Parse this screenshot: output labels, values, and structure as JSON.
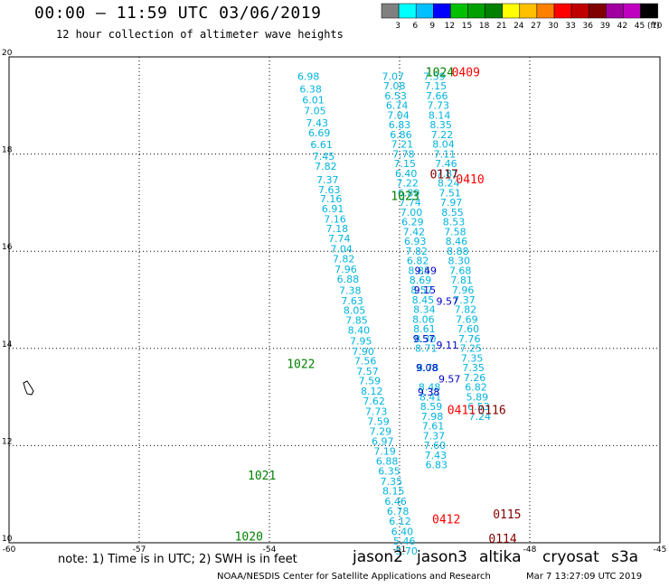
{
  "header": {
    "title": "00:00 – 11:59 UTC 03/06/2019",
    "subtitle": "12 hour collection of altimeter wave heights"
  },
  "colorbar": {
    "ticks": [
      "3",
      "6",
      "9",
      "12",
      "15",
      "18",
      "21",
      "24",
      "27",
      "30",
      "33",
      "36",
      "39",
      "42",
      "45",
      "70"
    ],
    "unit": "(ft)",
    "colors": [
      "#808080",
      "#00ffff",
      "#00c0ff",
      "#0000ff",
      "#00c000",
      "#00a000",
      "#008000",
      "#ffff00",
      "#ffc000",
      "#ff8000",
      "#ff0000",
      "#c00000",
      "#800000",
      "#a000a0",
      "#c000c0",
      "#000000"
    ]
  },
  "chart_data": {
    "type": "scatter",
    "xlim": [
      -60,
      -45
    ],
    "ylim": [
      10,
      20
    ],
    "x_ticks": [
      "-60",
      "-57",
      "-54",
      "-51",
      "-48",
      "-45"
    ],
    "y_ticks": [
      "10",
      "12",
      "14",
      "16",
      "18",
      "20"
    ],
    "tracks": [
      {
        "color": "#00b4dc",
        "points": [
          [
            -53.1,
            19.53,
            "6.98"
          ],
          [
            -53.05,
            19.27,
            "6.38"
          ],
          [
            -52.99,
            19.04,
            "6.01"
          ],
          [
            -52.95,
            18.82,
            "7.05"
          ],
          [
            -52.9,
            18.57,
            "7.43"
          ],
          [
            -52.85,
            18.36,
            "6.69"
          ],
          [
            -52.8,
            18.12,
            "6.61"
          ],
          [
            -52.75,
            17.88,
            "7.45"
          ],
          [
            -52.7,
            17.68,
            "7.82"
          ],
          [
            -52.66,
            17.4,
            "7.37"
          ],
          [
            -52.62,
            17.19,
            "7.63"
          ],
          [
            -52.58,
            17.01,
            "7.16"
          ],
          [
            -52.54,
            16.8,
            "6.91"
          ],
          [
            -52.49,
            16.59,
            "7.16"
          ],
          [
            -52.44,
            16.39,
            "7.18"
          ],
          [
            -52.39,
            16.19,
            "7.74"
          ],
          [
            -52.34,
            15.98,
            "7.04"
          ],
          [
            -52.29,
            15.77,
            "7.82"
          ],
          [
            -52.24,
            15.56,
            "7.96"
          ],
          [
            -52.19,
            15.35,
            "6.88"
          ],
          [
            -52.14,
            15.12,
            "7.38"
          ],
          [
            -52.09,
            14.91,
            "7.63"
          ],
          [
            -52.04,
            14.71,
            "8.05"
          ],
          [
            -51.99,
            14.51,
            "7.85"
          ],
          [
            -51.94,
            14.3,
            "8.40"
          ],
          [
            -51.89,
            14.08,
            "7.95"
          ],
          [
            -51.84,
            13.87,
            "7.90"
          ],
          [
            -51.79,
            13.67,
            "7.56"
          ],
          [
            -51.74,
            13.46,
            "7.57"
          ],
          [
            -51.69,
            13.26,
            "7.59"
          ],
          [
            -51.64,
            13.05,
            "8.12"
          ],
          [
            -51.59,
            12.84,
            "7.62"
          ],
          [
            -51.54,
            12.63,
            "7.73"
          ],
          [
            -51.49,
            12.43,
            "7.59"
          ],
          [
            -51.44,
            12.22,
            "7.29"
          ],
          [
            -51.39,
            12.02,
            "6.97"
          ],
          [
            -51.34,
            11.81,
            "7.19"
          ],
          [
            -51.29,
            11.61,
            "6.88"
          ],
          [
            -51.24,
            11.4,
            "6.35"
          ],
          [
            -51.19,
            11.19,
            "7.35"
          ],
          [
            -51.14,
            10.99,
            "8.15"
          ],
          [
            -51.09,
            10.78,
            "6.46"
          ],
          [
            -51.04,
            10.58,
            "6.78"
          ],
          [
            -50.99,
            10.37,
            "6.12"
          ],
          [
            -50.94,
            10.16,
            "6.40"
          ],
          [
            -50.89,
            9.96,
            "5.46"
          ],
          [
            -50.84,
            9.76,
            "5.70"
          ]
        ]
      },
      {
        "color": "#00b4dc",
        "points": [
          [
            -51.15,
            19.53,
            "7.07"
          ],
          [
            -51.12,
            19.33,
            "7.08"
          ],
          [
            -51.09,
            19.13,
            "6.53"
          ],
          [
            -51.06,
            18.93,
            "6.74"
          ],
          [
            -51.03,
            18.73,
            "7.04"
          ],
          [
            -51.0,
            18.53,
            "6.83"
          ],
          [
            -50.97,
            18.33,
            "6.86"
          ],
          [
            -50.94,
            18.13,
            "7.21"
          ],
          [
            -50.91,
            17.93,
            "7.78"
          ],
          [
            -50.88,
            17.73,
            "7.15"
          ],
          [
            -50.85,
            17.53,
            "6.40"
          ],
          [
            -50.82,
            17.33,
            "7.22"
          ],
          [
            -50.79,
            17.13,
            "6.89"
          ],
          [
            -50.76,
            16.93,
            "7.74"
          ],
          [
            -50.73,
            16.73,
            "7.00"
          ],
          [
            -50.7,
            16.53,
            "6.29"
          ],
          [
            -50.67,
            16.33,
            "7.42"
          ],
          [
            -50.64,
            16.13,
            "6.93"
          ],
          [
            -50.61,
            15.93,
            "7.82"
          ],
          [
            -50.58,
            15.73,
            "6.82"
          ],
          [
            -50.55,
            15.53,
            "8.85"
          ],
          [
            -50.52,
            15.33,
            "8.69"
          ],
          [
            -50.49,
            15.13,
            "8.57"
          ],
          [
            -50.46,
            14.93,
            "8.45"
          ],
          [
            -50.43,
            14.73,
            "8.34"
          ]
        ]
      },
      {
        "color": "#00b4dc",
        "points": [
          [
            -50.2,
            19.53,
            "7.59"
          ],
          [
            -50.17,
            19.33,
            "7.15"
          ],
          [
            -50.14,
            19.13,
            "7.66"
          ],
          [
            -50.11,
            18.93,
            "7.73"
          ],
          [
            -50.08,
            18.73,
            "8.14"
          ],
          [
            -50.05,
            18.53,
            "8.35"
          ],
          [
            -50.02,
            18.33,
            "7.22"
          ],
          [
            -49.99,
            18.13,
            "8.04"
          ],
          [
            -49.96,
            17.93,
            "7.11"
          ],
          [
            -49.93,
            17.73,
            "7.46"
          ],
          [
            -49.9,
            17.53,
            "7.81"
          ],
          [
            -49.87,
            17.33,
            "8.24"
          ],
          [
            -49.84,
            17.13,
            "7.51"
          ],
          [
            -49.81,
            16.93,
            "7.97"
          ],
          [
            -49.78,
            16.73,
            "8.55"
          ],
          [
            -49.75,
            16.53,
            "8.53"
          ],
          [
            -49.72,
            16.33,
            "7.58"
          ],
          [
            -49.69,
            16.13,
            "8.46"
          ],
          [
            -49.66,
            15.93,
            "8.88"
          ],
          [
            -49.63,
            15.73,
            "8.30"
          ],
          [
            -49.6,
            15.53,
            "7.68"
          ],
          [
            -49.57,
            15.33,
            "7.81"
          ],
          [
            -49.54,
            15.13,
            "7.96"
          ],
          [
            -49.51,
            14.93,
            "7.37"
          ],
          [
            -49.48,
            14.73,
            "7.82"
          ],
          [
            -49.45,
            14.53,
            "7.69"
          ],
          [
            -49.42,
            14.33,
            "7.60"
          ],
          [
            -49.39,
            14.13,
            "7.76"
          ],
          [
            -49.36,
            13.93,
            "7.25"
          ],
          [
            -49.33,
            13.73,
            "7.35"
          ],
          [
            -49.3,
            13.53,
            "7.35"
          ],
          [
            -49.27,
            13.33,
            "7.26"
          ],
          [
            -49.24,
            13.13,
            "6.82"
          ],
          [
            -49.21,
            12.93,
            "5.89"
          ],
          [
            -49.18,
            12.73,
            "6.53"
          ],
          [
            -49.15,
            12.53,
            "7.24"
          ]
        ]
      },
      {
        "color": "#00b4dc",
        "points": [
          [
            -50.45,
            14.53,
            "8.06"
          ],
          [
            -50.43,
            14.33,
            "8.61"
          ],
          [
            -50.41,
            14.13,
            "8.30"
          ],
          [
            -50.39,
            13.93,
            "8.71"
          ],
          [
            -50.35,
            13.53,
            "8.78"
          ],
          [
            -50.31,
            13.13,
            "8.48"
          ],
          [
            -50.29,
            12.93,
            "8.41"
          ],
          [
            -50.27,
            12.73,
            "8.59"
          ],
          [
            -50.25,
            12.53,
            "7.98"
          ],
          [
            -50.23,
            12.33,
            "7.61"
          ],
          [
            -50.21,
            12.13,
            "7.37"
          ],
          [
            -50.19,
            11.93,
            "7.60"
          ],
          [
            -50.17,
            11.73,
            "7.43"
          ],
          [
            -50.15,
            11.53,
            "6.83"
          ]
        ]
      },
      {
        "color": "#0000c8",
        "points": [
          [
            -50.4,
            15.53,
            "9.49"
          ],
          [
            -50.42,
            15.13,
            "9.15"
          ],
          [
            -49.9,
            14.9,
            "9.57"
          ],
          [
            -50.44,
            14.13,
            "9.57"
          ],
          [
            -49.9,
            14.0,
            "9.11"
          ],
          [
            -50.37,
            13.53,
            "9.08"
          ],
          [
            -49.85,
            13.3,
            "9.57"
          ],
          [
            -50.33,
            13.03,
            "9.38"
          ]
        ]
      }
    ],
    "annotations": [
      {
        "label": "1024",
        "color": "#008000",
        "x": -50.4,
        "y": 19.6
      },
      {
        "label": "0409",
        "color": "#ff0000",
        "x": -49.8,
        "y": 19.6
      },
      {
        "label": "0117",
        "color": "#800000",
        "x": -50.3,
        "y": 17.5
      },
      {
        "label": "0410",
        "color": "#ff0000",
        "x": -49.7,
        "y": 17.4
      },
      {
        "label": "1023",
        "color": "#008000",
        "x": -51.2,
        "y": 17.05
      },
      {
        "label": "1022",
        "color": "#008000",
        "x": -53.6,
        "y": 13.6
      },
      {
        "label": "0411",
        "color": "#ff0000",
        "x": -49.9,
        "y": 12.65
      },
      {
        "label": "0116",
        "color": "#800000",
        "x": -49.2,
        "y": 12.65
      },
      {
        "label": "1021",
        "color": "#008000",
        "x": -54.5,
        "y": 11.3
      },
      {
        "label": "0412",
        "color": "#ff0000",
        "x": -50.25,
        "y": 10.4
      },
      {
        "label": "0115",
        "color": "#800000",
        "x": -48.85,
        "y": 10.5
      },
      {
        "label": "1020",
        "color": "#008000",
        "x": -54.8,
        "y": 10.05
      },
      {
        "label": "0114",
        "color": "#800000",
        "x": -48.95,
        "y": 10.0
      }
    ]
  },
  "footer": {
    "note": "note:  1) Time is in UTC;  2) SWH is in feet",
    "satellites": [
      {
        "name": "jason2",
        "color": "#0000ff"
      },
      {
        "name": "jason3",
        "color": "#00a000"
      },
      {
        "name": "altika",
        "color": "#ffa000"
      },
      {
        "name": "cryosat",
        "color": "#ff0000"
      },
      {
        "name": "s3a",
        "color": "#800000"
      }
    ],
    "credit": "NOAA/NESDIS Center for Satellite Applications and Research",
    "date": "Mar  7 13:27:09 UTC 2019"
  }
}
